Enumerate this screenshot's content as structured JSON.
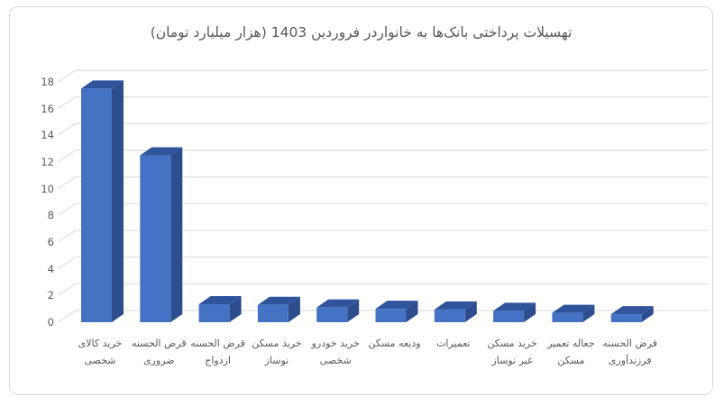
{
  "chart_data": {
    "type": "bar",
    "style": "3d-column",
    "title": "تهسیلات پرداختی بانک‌ها به خانواردر فروردین 1403 (هزار میلیارد تومان)",
    "xlabel": "",
    "ylabel": "",
    "categories": [
      "خرید کالای شخصی",
      "قرض الحسنه ضروری",
      "قرض الحسنه ازدواج",
      "خرید مسکن نوساز",
      "خرید خودرو شخصی",
      "ودیعه مسکن",
      "تعمیرات",
      "خرید مسکن غیر نوساز",
      "جعاله تعمیر مسکن",
      "قرض الحسنه فرزندآوری"
    ],
    "values": [
      17.5,
      12.5,
      1.35,
      1.3,
      1.1,
      1.0,
      0.95,
      0.85,
      0.7,
      0.6
    ],
    "ylim": [
      0,
      18
    ],
    "yticks": [
      0,
      2,
      4,
      6,
      8,
      10,
      12,
      14,
      16,
      18
    ],
    "grid": true,
    "legend": "none",
    "colors": {
      "bar_front": "#4472c4",
      "bar_top": "#30549b",
      "bar_side": "#2e4d8e",
      "gridline": "#d9d9d9",
      "axis_text": "#595959",
      "title_text": "#595959",
      "frame_border": "#d9d9d9",
      "background": "#ffffff"
    }
  }
}
